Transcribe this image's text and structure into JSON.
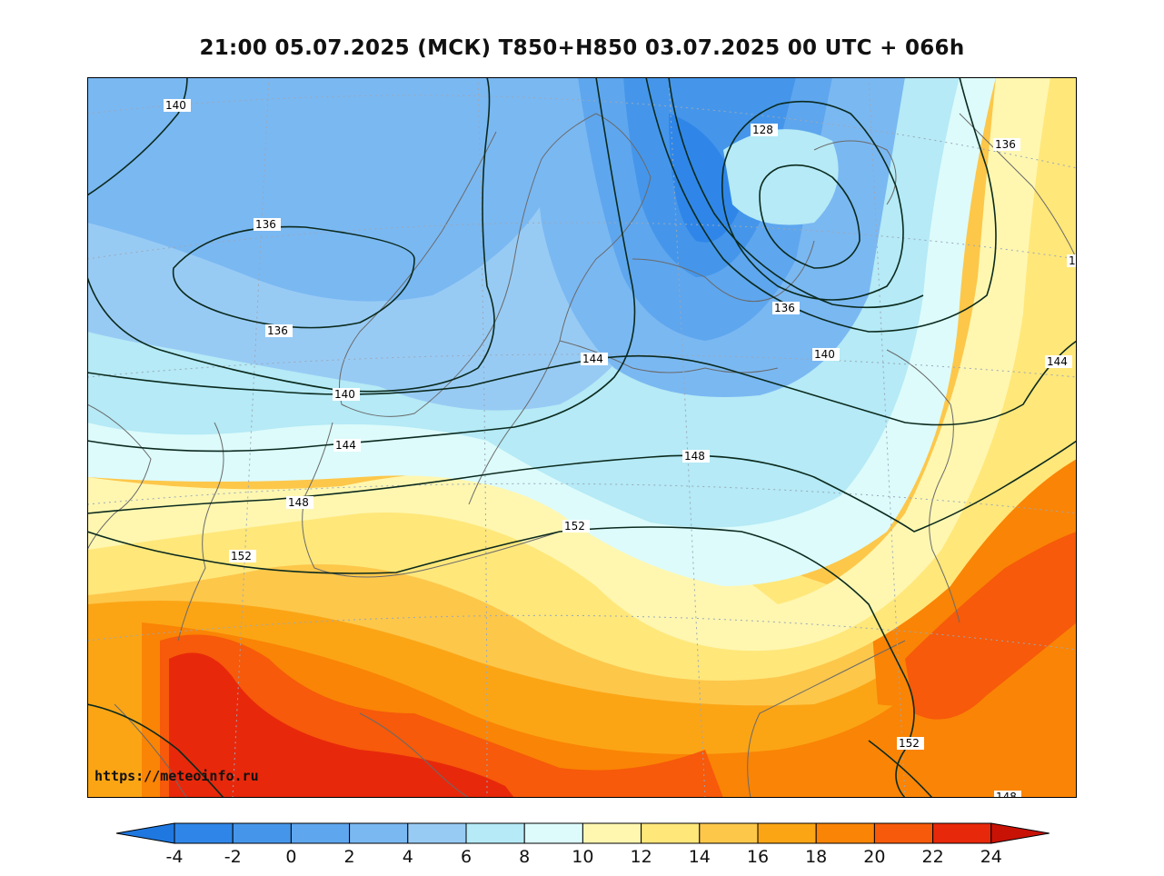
{
  "title": "21:00 05.07.2025 (МСК) T850+H850 03.07.2025 00 UTC + 066h",
  "watermark": "https://meteoinfo.ru",
  "colorbar": {
    "ticks": [
      "-4",
      "-2",
      "0",
      "2",
      "4",
      "6",
      "8",
      "10",
      "12",
      "14",
      "16",
      "18",
      "20",
      "22",
      "24"
    ],
    "colors": [
      "#1f78e0",
      "#2f86e8",
      "#4596ea",
      "#5ea6ee",
      "#7ab8f2",
      "#98cbf4",
      "#b5eaf6",
      "#ddfbfb",
      "#fff7b0",
      "#ffe77a",
      "#fdc74a",
      "#fba515",
      "#fa8405",
      "#f65a0a",
      "#e8280b",
      "#c81206"
    ]
  },
  "contour_labels": {
    "c140a": "140",
    "c136a": "136",
    "c136b": "136",
    "c140b": "140",
    "c144a": "144",
    "c148a": "148",
    "c152a": "152",
    "c128": "128",
    "c136c": "136",
    "c136d": "136",
    "c140c": "140",
    "c144b": "144",
    "c144c": "144",
    "c148b": "148",
    "c152b": "152",
    "c152c": "152",
    "c1": "1",
    "c148c": "148"
  }
}
